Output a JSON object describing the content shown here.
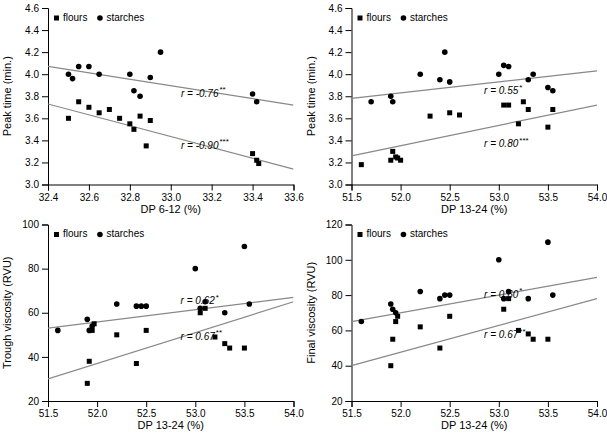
{
  "chart_data": [
    {
      "type": "scatter",
      "xlabel": "DP 6-12 (%)",
      "ylabel": "Peak time (min.)",
      "xlim": [
        32.4,
        33.6
      ],
      "ylim": [
        3.0,
        4.6
      ],
      "xticks": [
        32.4,
        32.6,
        32.8,
        {
          "value": 33.0,
          "label": "33.0"
        },
        33.2,
        33.4,
        33.6
      ],
      "yticks": [
        {
          "value": 3.0,
          "label": "3.0"
        },
        3.2,
        3.4,
        3.6,
        3.8,
        {
          "value": 4.0,
          "label": "4.0"
        },
        4.2,
        4.4,
        4.6
      ],
      "grid": false,
      "legend": "upper left",
      "series": [
        {
          "name": "flours",
          "type": "scatter",
          "marker": "square",
          "color": "black",
          "x": [
            32.5,
            32.55,
            32.6,
            32.65,
            32.7,
            32.75,
            32.8,
            32.82,
            32.85,
            32.88,
            32.9,
            33.4,
            33.42,
            33.43
          ],
          "values": [
            3.6,
            3.75,
            3.7,
            3.65,
            3.68,
            3.6,
            3.55,
            3.5,
            3.62,
            3.35,
            3.58,
            3.28,
            3.22,
            3.19
          ]
        },
        {
          "name": "starches",
          "type": "scatter",
          "marker": "circle",
          "color": "black",
          "x": [
            32.5,
            32.52,
            32.55,
            32.6,
            32.65,
            32.8,
            32.82,
            32.85,
            32.9,
            32.95,
            33.4,
            33.42
          ],
          "values": [
            4.0,
            3.96,
            4.07,
            4.07,
            4.0,
            4.0,
            3.85,
            3.8,
            3.97,
            4.2,
            3.82,
            3.75
          ]
        },
        {
          "type": "line",
          "color": "#888888",
          "x": [
            32.4,
            33.6
          ],
          "values": [
            3.73,
            3.14
          ]
        },
        {
          "type": "line",
          "color": "#888888",
          "x": [
            32.4,
            33.6
          ],
          "values": [
            4.07,
            3.72
          ]
        }
      ],
      "annotations": [
        {
          "text": "r = -0.90",
          "superscript": "***",
          "x": 33.05,
          "y": 3.35
        },
        {
          "text": "r = -0.76",
          "superscript": "**",
          "x": 33.05,
          "y": 3.82
        }
      ]
    },
    {
      "type": "scatter",
      "xlabel": "DP 13-24 (%)",
      "ylabel": "Peak time (min.)",
      "xlim": [
        51.5,
        54.0
      ],
      "ylim": [
        3.0,
        4.6
      ],
      "xticks": [
        51.5,
        {
          "value": 52.0,
          "label": "52.0"
        },
        52.5,
        {
          "value": 53.0,
          "label": "53.0"
        },
        53.5,
        {
          "value": 54.0,
          "label": "54.0"
        }
      ],
      "yticks": [
        {
          "value": 3.0,
          "label": "3.0"
        },
        3.2,
        3.4,
        3.6,
        3.8,
        {
          "value": 4.0,
          "label": "4.0"
        },
        4.2,
        4.4,
        4.6
      ],
      "grid": false,
      "legend": "upper left",
      "series": [
        {
          "name": "flours",
          "type": "scatter",
          "marker": "square",
          "color": "black",
          "x": [
            51.6,
            51.9,
            51.92,
            51.95,
            51.97,
            52.0,
            52.3,
            52.5,
            52.6,
            53.05,
            53.1,
            53.2,
            53.25,
            53.3,
            53.5,
            53.55
          ],
          "values": [
            3.18,
            3.22,
            3.3,
            3.25,
            3.24,
            3.22,
            3.62,
            3.65,
            3.63,
            3.72,
            3.72,
            3.55,
            3.75,
            3.68,
            3.52,
            3.68
          ]
        },
        {
          "name": "starches",
          "type": "scatter",
          "marker": "circle",
          "color": "black",
          "x": [
            51.7,
            51.9,
            51.92,
            52.2,
            52.4,
            52.45,
            52.5,
            53.0,
            53.05,
            53.1,
            53.3,
            53.35,
            53.5,
            53.55
          ],
          "values": [
            3.75,
            3.8,
            3.75,
            4.0,
            3.95,
            4.2,
            3.93,
            4.0,
            4.08,
            4.07,
            3.95,
            4.0,
            3.88,
            3.85
          ]
        },
        {
          "type": "line",
          "color": "#888888",
          "x": [
            51.5,
            54.0
          ],
          "values": [
            3.26,
            3.72
          ]
        },
        {
          "type": "line",
          "color": "#888888",
          "x": [
            51.5,
            54.0
          ],
          "values": [
            3.78,
            4.03
          ]
        }
      ],
      "annotations": [
        {
          "text": "r = 0.80",
          "superscript": "***",
          "x": 52.85,
          "y": 3.36
        },
        {
          "text": "r = 0.55",
          "superscript": "*",
          "x": 52.85,
          "y": 3.84
        }
      ]
    },
    {
      "type": "scatter",
      "xlabel": "DP 13-24 (%)",
      "ylabel": "Trough viscosity (RVU)",
      "xlim": [
        51.5,
        54.0
      ],
      "ylim": [
        20,
        100
      ],
      "xticks": [
        51.5,
        {
          "value": 52.0,
          "label": "52.0"
        },
        52.5,
        {
          "value": 53.0,
          "label": "53.0"
        },
        53.5,
        {
          "value": 54.0,
          "label": "54.0"
        }
      ],
      "yticks": [
        20,
        40,
        60,
        80,
        100
      ],
      "grid": false,
      "legend": "upper left",
      "series": [
        {
          "name": "flours",
          "type": "scatter",
          "marker": "square",
          "color": "black",
          "x": [
            51.9,
            51.92,
            51.95,
            51.97,
            52.2,
            52.4,
            52.5,
            53.05,
            53.1,
            53.2,
            53.3,
            53.35,
            53.5
          ],
          "values": [
            28,
            38,
            52,
            55,
            50,
            37,
            52,
            60,
            62,
            49,
            46,
            44,
            44
          ]
        },
        {
          "name": "starches",
          "type": "scatter",
          "marker": "circle",
          "color": "black",
          "x": [
            51.6,
            51.9,
            51.92,
            51.95,
            52.2,
            52.4,
            52.45,
            52.5,
            53.0,
            53.05,
            53.1,
            53.3,
            53.5,
            53.55
          ],
          "values": [
            52,
            57,
            52,
            54,
            64,
            63,
            63,
            63,
            80,
            62,
            65,
            60,
            90,
            64
          ]
        },
        {
          "type": "line",
          "color": "#888888",
          "x": [
            51.5,
            54.0
          ],
          "values": [
            30,
            65
          ]
        },
        {
          "type": "line",
          "color": "#888888",
          "x": [
            51.5,
            54.0
          ],
          "values": [
            53,
            67
          ]
        }
      ],
      "annotations": [
        {
          "text": "r = 0.67",
          "superscript": "**",
          "x": 52.85,
          "y": 49
        },
        {
          "text": "r = 0.62",
          "superscript": "*",
          "x": 52.85,
          "y": 65
        }
      ]
    },
    {
      "type": "scatter",
      "xlabel": "DP 13-24 (%)",
      "ylabel": "Final viscosity (RVU)",
      "xlim": [
        51.5,
        54.0
      ],
      "ylim": [
        20,
        120
      ],
      "xticks": [
        51.5,
        {
          "value": 52.0,
          "label": "52.0"
        },
        52.5,
        {
          "value": 53.0,
          "label": "53.0"
        },
        53.5,
        {
          "value": 54.0,
          "label": "54.0"
        }
      ],
      "yticks": [
        20,
        40,
        60,
        80,
        100,
        120
      ],
      "grid": false,
      "legend": "upper left",
      "series": [
        {
          "name": "flours",
          "type": "scatter",
          "marker": "square",
          "color": "black",
          "x": [
            51.9,
            51.92,
            51.95,
            51.97,
            52.2,
            52.4,
            52.5,
            53.05,
            53.1,
            53.2,
            53.3,
            53.35,
            53.5
          ],
          "values": [
            40,
            55,
            65,
            68,
            62,
            50,
            68,
            72,
            78,
            60,
            58,
            55,
            55
          ]
        },
        {
          "name": "starches",
          "type": "scatter",
          "marker": "circle",
          "color": "black",
          "x": [
            51.6,
            51.9,
            51.92,
            51.95,
            52.2,
            52.4,
            52.45,
            52.5,
            53.0,
            53.05,
            53.1,
            53.3,
            53.5,
            53.55
          ],
          "values": [
            65,
            75,
            72,
            70,
            82,
            78,
            80,
            80,
            100,
            78,
            82,
            78,
            110,
            80
          ]
        },
        {
          "type": "line",
          "color": "#888888",
          "x": [
            51.5,
            54.0
          ],
          "values": [
            40,
            78
          ]
        },
        {
          "type": "line",
          "color": "#888888",
          "x": [
            51.5,
            54.0
          ],
          "values": [
            65,
            90
          ]
        }
      ],
      "annotations": [
        {
          "text": "r = 0.67",
          "superscript": "**",
          "x": 52.85,
          "y": 57
        },
        {
          "text": "r = 0.60",
          "superscript": "*",
          "x": 52.85,
          "y": 80
        }
      ]
    }
  ]
}
